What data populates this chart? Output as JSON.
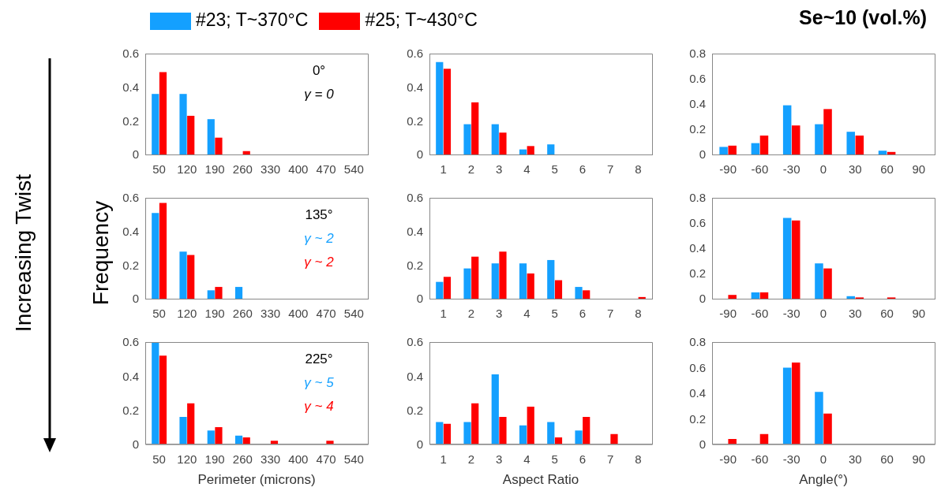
{
  "chart_data": [
    {
      "type": "bar",
      "categories": [
        "50",
        "120",
        "190",
        "260",
        "330",
        "400",
        "470",
        "540"
      ],
      "ylim": [
        0,
        0.6
      ],
      "yticks": [
        0,
        0.2,
        0.4,
        0.6
      ],
      "legend": "top",
      "annotations": [
        "0°",
        "γ = 0"
      ],
      "series": [
        {
          "name": "#23; T~370°C",
          "color": "#14a0ff",
          "values": [
            0.36,
            0.36,
            0.21,
            0,
            0,
            0,
            0,
            0
          ]
        },
        {
          "name": "#25; T~430°C",
          "color": "#ff0000",
          "values": [
            0.49,
            0.23,
            0.1,
            0.02,
            0,
            0,
            0,
            0
          ]
        }
      ]
    },
    {
      "type": "bar",
      "categories": [
        "1",
        "2",
        "3",
        "4",
        "5",
        "6",
        "7",
        "8"
      ],
      "ylim": [
        0,
        0.6
      ],
      "yticks": [
        0,
        0.2,
        0.4,
        0.6
      ],
      "series": [
        {
          "color": "#14a0ff",
          "values": [
            0.55,
            0.18,
            0.18,
            0.03,
            0.06,
            0,
            0,
            0
          ]
        },
        {
          "color": "#ff0000",
          "values": [
            0.51,
            0.31,
            0.13,
            0.05,
            0,
            0,
            0,
            0
          ]
        }
      ]
    },
    {
      "type": "bar",
      "title": "Se~10 (vol.%)",
      "categories": [
        "-90",
        "-60",
        "-30",
        "0",
        "30",
        "60",
        "90"
      ],
      "ylim": [
        0,
        0.8
      ],
      "yticks": [
        0,
        0.2,
        0.4,
        0.6,
        0.8
      ],
      "series": [
        {
          "color": "#14a0ff",
          "values": [
            0.06,
            0.09,
            0.39,
            0.24,
            0.18,
            0.03,
            0
          ]
        },
        {
          "color": "#ff0000",
          "values": [
            0.07,
            0.15,
            0.23,
            0.36,
            0.15,
            0.02,
            0
          ]
        }
      ]
    },
    {
      "type": "bar",
      "ylabel": "Frequency",
      "categories": [
        "50",
        "120",
        "190",
        "260",
        "330",
        "400",
        "470",
        "540"
      ],
      "ylim": [
        0,
        0.6
      ],
      "yticks": [
        0,
        0.2,
        0.4,
        0.6
      ],
      "annotations": [
        "135°",
        "γ ~ 2",
        "γ ~ 2",
        "Increasing Twist"
      ],
      "series": [
        {
          "color": "#14a0ff",
          "values": [
            0.51,
            0.28,
            0.05,
            0.07,
            0,
            0,
            0,
            0
          ]
        },
        {
          "color": "#ff0000",
          "values": [
            0.57,
            0.26,
            0.07,
            0,
            0,
            0,
            0,
            0
          ]
        }
      ]
    },
    {
      "type": "bar",
      "categories": [
        "1",
        "2",
        "3",
        "4",
        "5",
        "6",
        "7",
        "8"
      ],
      "ylim": [
        0,
        0.6
      ],
      "yticks": [
        0,
        0.2,
        0.4,
        0.6
      ],
      "series": [
        {
          "color": "#14a0ff",
          "values": [
            0.1,
            0.18,
            0.21,
            0.21,
            0.23,
            0.07,
            0,
            0
          ]
        },
        {
          "color": "#ff0000",
          "values": [
            0.13,
            0.25,
            0.28,
            0.15,
            0.11,
            0.05,
            0,
            0.01
          ]
        }
      ]
    },
    {
      "type": "bar",
      "categories": [
        "-90",
        "-60",
        "-30",
        "0",
        "30",
        "60",
        "90"
      ],
      "ylim": [
        0,
        0.8
      ],
      "yticks": [
        0,
        0.2,
        0.4,
        0.6,
        0.8
      ],
      "series": [
        {
          "color": "#14a0ff",
          "values": [
            0,
            0.05,
            0.64,
            0.28,
            0.02,
            0,
            0
          ]
        },
        {
          "color": "#ff0000",
          "values": [
            0.03,
            0.05,
            0.62,
            0.24,
            0.01,
            0.01,
            0
          ]
        }
      ]
    },
    {
      "type": "bar",
      "xlabel": "Perimeter (microns)",
      "categories": [
        "50",
        "120",
        "190",
        "260",
        "330",
        "400",
        "470",
        "540"
      ],
      "ylim": [
        0,
        0.6
      ],
      "yticks": [
        0,
        0.2,
        0.4,
        0.6
      ],
      "annotations": [
        "225°",
        "γ ~ 5",
        "γ ~ 4"
      ],
      "series": [
        {
          "color": "#14a0ff",
          "values": [
            0.6,
            0.16,
            0.08,
            0.05,
            0,
            0,
            0,
            0
          ]
        },
        {
          "color": "#ff0000",
          "values": [
            0.52,
            0.24,
            0.1,
            0.04,
            0.02,
            0,
            0.02,
            0
          ]
        }
      ]
    },
    {
      "type": "bar",
      "xlabel": "Aspect Ratio",
      "categories": [
        "1",
        "2",
        "3",
        "4",
        "5",
        "6",
        "7",
        "8"
      ],
      "ylim": [
        0,
        0.6
      ],
      "yticks": [
        0,
        0.2,
        0.4,
        0.6
      ],
      "series": [
        {
          "color": "#14a0ff",
          "values": [
            0.13,
            0.13,
            0.41,
            0.11,
            0.13,
            0.08,
            0,
            0
          ]
        },
        {
          "color": "#ff0000",
          "values": [
            0.12,
            0.24,
            0.16,
            0.22,
            0.04,
            0.16,
            0.06,
            0
          ]
        }
      ]
    },
    {
      "type": "bar",
      "xlabel": "Angle(°)",
      "categories": [
        "-90",
        "-60",
        "-30",
        "0",
        "30",
        "60",
        "90"
      ],
      "ylim": [
        0,
        0.8
      ],
      "yticks": [
        0,
        0.2,
        0.4,
        0.6,
        0.8
      ],
      "series": [
        {
          "color": "#14a0ff",
          "values": [
            0,
            0,
            0.6,
            0.41,
            0,
            0,
            0
          ]
        },
        {
          "color": "#ff0000",
          "values": [
            0.04,
            0.08,
            0.64,
            0.24,
            0,
            0,
            0
          ]
        }
      ]
    }
  ]
}
